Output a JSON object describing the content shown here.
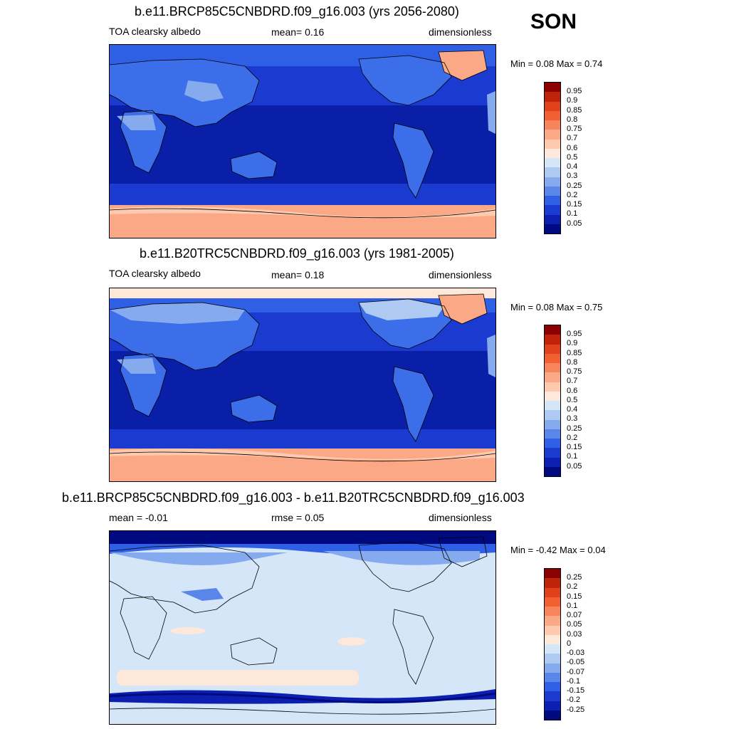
{
  "season": "SON",
  "panels": [
    {
      "title": "b.e11.BRCP85C5CNBDRD.f09_g16.003 (yrs 2056-2080)",
      "left_label": "TOA clearsky albedo",
      "center_label": "mean=   0.16",
      "right_label": "dimensionless",
      "minmax": "Min =   0.08 Max =    0.74",
      "colorbar_labels": [
        "0.95",
        "0.9",
        "0.85",
        "0.8",
        "0.75",
        "0.7",
        "0.6",
        "0.5",
        "0.4",
        "0.3",
        "0.25",
        "0.2",
        "0.15",
        "0.1",
        "0.05"
      ],
      "colorbar_colors": [
        "#8b0000",
        "#c0220a",
        "#e0401a",
        "#f06030",
        "#f7845a",
        "#fba886",
        "#fdcab0",
        "#fde8da",
        "#d4e6f8",
        "#aec9f2",
        "#86aaee",
        "#5a86ea",
        "#2f5fe4",
        "#1a3ad0",
        "#0c1fb0",
        "#000a80"
      ]
    },
    {
      "title": "b.e11.B20TRC5CNBDRD.f09_g16.003 (yrs 1981-2005)",
      "left_label": "TOA clearsky albedo",
      "center_label": "mean=   0.18",
      "right_label": "dimensionless",
      "minmax": "Min =   0.08 Max =    0.75",
      "colorbar_labels": [
        "0.95",
        "0.9",
        "0.85",
        "0.8",
        "0.75",
        "0.7",
        "0.6",
        "0.5",
        "0.4",
        "0.3",
        "0.25",
        "0.2",
        "0.15",
        "0.1",
        "0.05"
      ],
      "colorbar_colors": [
        "#8b0000",
        "#c0220a",
        "#e0401a",
        "#f06030",
        "#f7845a",
        "#fba886",
        "#fdcab0",
        "#fde8da",
        "#d4e6f8",
        "#aec9f2",
        "#86aaee",
        "#5a86ea",
        "#2f5fe4",
        "#1a3ad0",
        "#0c1fb0",
        "#000a80"
      ]
    },
    {
      "title": "b.e11.BRCP85C5CNBDRD.f09_g16.003 - b.e11.B20TRC5CNBDRD.f09_g16.003",
      "left_label": "mean =  -0.01",
      "center_label": "rmse =   0.05",
      "right_label": "dimensionless",
      "minmax": "Min =  -0.42 Max =    0.04",
      "colorbar_labels": [
        "0.25",
        "0.2",
        "0.15",
        "0.1",
        "0.07",
        "0.05",
        "0.03",
        "0",
        "-0.03",
        "-0.05",
        "-0.07",
        "-0.1",
        "-0.15",
        "-0.2",
        "-0.25"
      ],
      "colorbar_colors": [
        "#8b0000",
        "#c0220a",
        "#e0401a",
        "#f06030",
        "#f7845a",
        "#fba886",
        "#fdcab0",
        "#fde8da",
        "#d4e6f8",
        "#aec9f2",
        "#86aaee",
        "#5a86ea",
        "#2f5fe4",
        "#1a3ad0",
        "#0c1fb0",
        "#000a80"
      ]
    }
  ],
  "map_colors": {
    "ocean_deep": "#0a1fa8",
    "ocean_mid": "#1a3ad0",
    "ocean_high": "#2f5fe4",
    "land_low": "#3d6eea",
    "land_mid": "#86aaee",
    "ice_sheet": "#fba886",
    "ice_light": "#fdcab0",
    "diff_bg": "#d4e6f8",
    "diff_pos": "#fde8da",
    "diff_neg": "#1a3ad0",
    "diff_strong_neg": "#000a80"
  }
}
